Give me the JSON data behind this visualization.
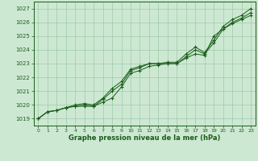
{
  "xlabel": "Graphe pression niveau de la mer (hPa)",
  "xlim": [
    -0.5,
    23.5
  ],
  "ylim": [
    1018.5,
    1027.5
  ],
  "yticks": [
    1019,
    1020,
    1021,
    1022,
    1023,
    1024,
    1025,
    1026,
    1027
  ],
  "xticks": [
    0,
    1,
    2,
    3,
    4,
    5,
    6,
    7,
    8,
    9,
    10,
    11,
    12,
    13,
    14,
    15,
    16,
    17,
    18,
    19,
    20,
    21,
    22,
    23
  ],
  "bg_color": "#cde8d2",
  "grid_color": "#9ec9a8",
  "line_color": "#1a5c1a",
  "line1": [
    1019.0,
    1019.5,
    1019.6,
    1019.8,
    1019.9,
    1020.0,
    1019.9,
    1020.4,
    1021.0,
    1021.5,
    1022.5,
    1022.7,
    1023.0,
    1023.0,
    1023.0,
    1023.0,
    1023.5,
    1024.0,
    1023.7,
    1024.5,
    1025.5,
    1026.0,
    1026.3,
    1026.7
  ],
  "line2": [
    1019.0,
    1019.5,
    1019.6,
    1019.8,
    1020.0,
    1020.1,
    1020.0,
    1020.5,
    1021.2,
    1021.7,
    1022.6,
    1022.8,
    1023.0,
    1023.0,
    1023.1,
    1023.1,
    1023.7,
    1024.2,
    1023.8,
    1024.7,
    1025.7,
    1026.2,
    1026.5,
    1027.0
  ],
  "line3": [
    1019.0,
    1019.5,
    1019.6,
    1019.8,
    1019.9,
    1019.9,
    1019.9,
    1020.2,
    1020.5,
    1021.3,
    1022.3,
    1022.5,
    1022.8,
    1022.9,
    1023.0,
    1023.0,
    1023.4,
    1023.7,
    1023.6,
    1025.0,
    1025.5,
    1025.9,
    1026.2,
    1026.5
  ]
}
